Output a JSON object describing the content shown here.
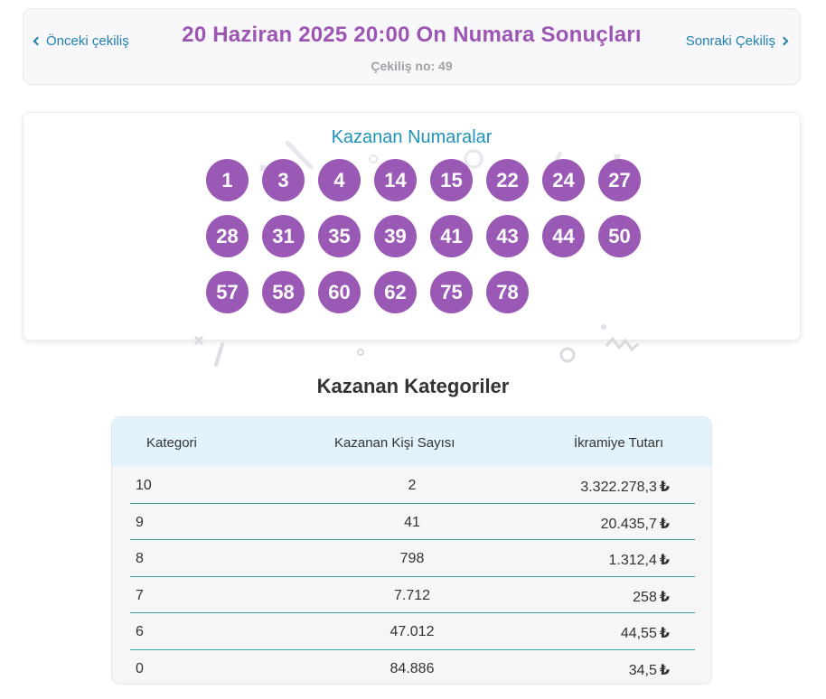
{
  "header": {
    "prev_label": "Önceki çekiliş",
    "next_label": "Sonraki Çekiliş",
    "title": "20 Haziran 2025 20:00 On Numara Sonuçları",
    "draw_no": "Çekiliş no: 49"
  },
  "winning_numbers": {
    "title": "Kazanan Numaralar",
    "numbers": [
      "1",
      "3",
      "4",
      "14",
      "15",
      "22",
      "24",
      "27",
      "28",
      "31",
      "35",
      "39",
      "41",
      "43",
      "44",
      "50",
      "57",
      "58",
      "60",
      "62",
      "75",
      "78"
    ]
  },
  "categories": {
    "title": "Kazanan Kategoriler",
    "columns": [
      "Kategori",
      "Kazanan Kişi Sayısı",
      "İkramiye Tutarı"
    ],
    "currency_symbol": "₺",
    "rows": [
      {
        "category": "10",
        "winners": "2",
        "prize": "3.322.278,3"
      },
      {
        "category": "9",
        "winners": "41",
        "prize": "20.435,7"
      },
      {
        "category": "8",
        "winners": "798",
        "prize": "1.312,4"
      },
      {
        "category": "7",
        "winners": "7.712",
        "prize": "258"
      },
      {
        "category": "6",
        "winners": "47.012",
        "prize": "44,55"
      },
      {
        "category": "0",
        "winners": "84.886",
        "prize": "34,5"
      }
    ]
  },
  "colors": {
    "accent_purple": "#9b59b6",
    "link_blue": "#1f7fb0",
    "numbers_title": "#1f93b8",
    "table_header_bg": "#e3f3fb"
  }
}
